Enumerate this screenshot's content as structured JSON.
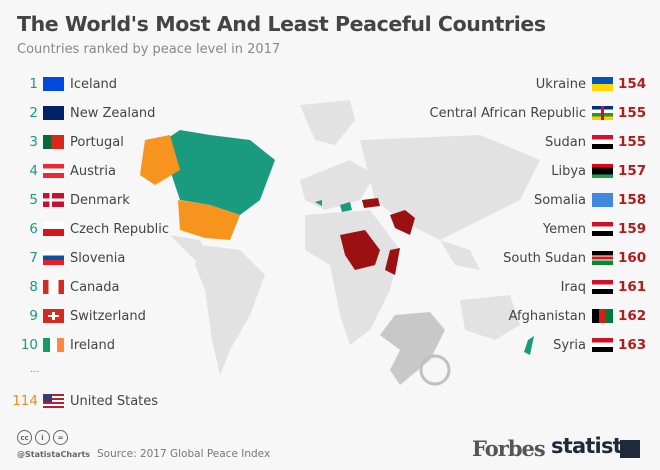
{
  "title": "The World's Most And Least Peaceful Countries",
  "subtitle": "Countries ranked by peace level in 2017",
  "most_peaceful": [
    {
      "rank": "1",
      "country": "Iceland",
      "flag": "iceland-flag-icon"
    },
    {
      "rank": "2",
      "country": "New Zealand",
      "flag": "new-zealand-flag-icon"
    },
    {
      "rank": "3",
      "country": "Portugal",
      "flag": "portugal-flag-icon"
    },
    {
      "rank": "4",
      "country": "Austria",
      "flag": "austria-flag-icon"
    },
    {
      "rank": "5",
      "country": "Denmark",
      "flag": "denmark-flag-icon"
    },
    {
      "rank": "6",
      "country": "Czech Republic",
      "flag": "czech-flag-icon"
    },
    {
      "rank": "7",
      "country": "Slovenia",
      "flag": "slovenia-flag-icon"
    },
    {
      "rank": "8",
      "country": "Canada",
      "flag": "canada-flag-icon"
    },
    {
      "rank": "9",
      "country": "Switzerland",
      "flag": "switzerland-flag-icon"
    },
    {
      "rank": "10",
      "country": "Ireland",
      "flag": "ireland-flag-icon"
    }
  ],
  "ellipsis": "...",
  "highlight": {
    "rank": "114",
    "country": "United States",
    "flag": "usa-flag-icon"
  },
  "least_peaceful": [
    {
      "rank": "154",
      "country": "Ukraine",
      "flag": "ukraine-flag-icon"
    },
    {
      "rank": "155",
      "country": "Central African Republic",
      "flag": "car-flag-icon"
    },
    {
      "rank": "155",
      "country": "Sudan",
      "flag": "sudan-flag-icon"
    },
    {
      "rank": "157",
      "country": "Libya",
      "flag": "libya-flag-icon"
    },
    {
      "rank": "158",
      "country": "Somalia",
      "flag": "somalia-flag-icon"
    },
    {
      "rank": "159",
      "country": "Yemen",
      "flag": "yemen-flag-icon"
    },
    {
      "rank": "160",
      "country": "South Sudan",
      "flag": "south-sudan-flag-icon"
    },
    {
      "rank": "161",
      "country": "Iraq",
      "flag": "iraq-flag-icon"
    },
    {
      "rank": "162",
      "country": "Afghanistan",
      "flag": "afghanistan-flag-icon"
    },
    {
      "rank": "163",
      "country": "Syria",
      "flag": "syria-flag-icon"
    }
  ],
  "colors": {
    "most_peaceful": "#1a9a7e",
    "least_peaceful": "#9b1111",
    "united_states": "#f7941d",
    "land": "#e2e2e2"
  },
  "footer": {
    "handle": "@StatistaCharts",
    "source": "Source: 2017 Global Peace Index",
    "cc": [
      "cc",
      "i",
      "="
    ],
    "forbes": "Forbes",
    "statista": "statista"
  }
}
